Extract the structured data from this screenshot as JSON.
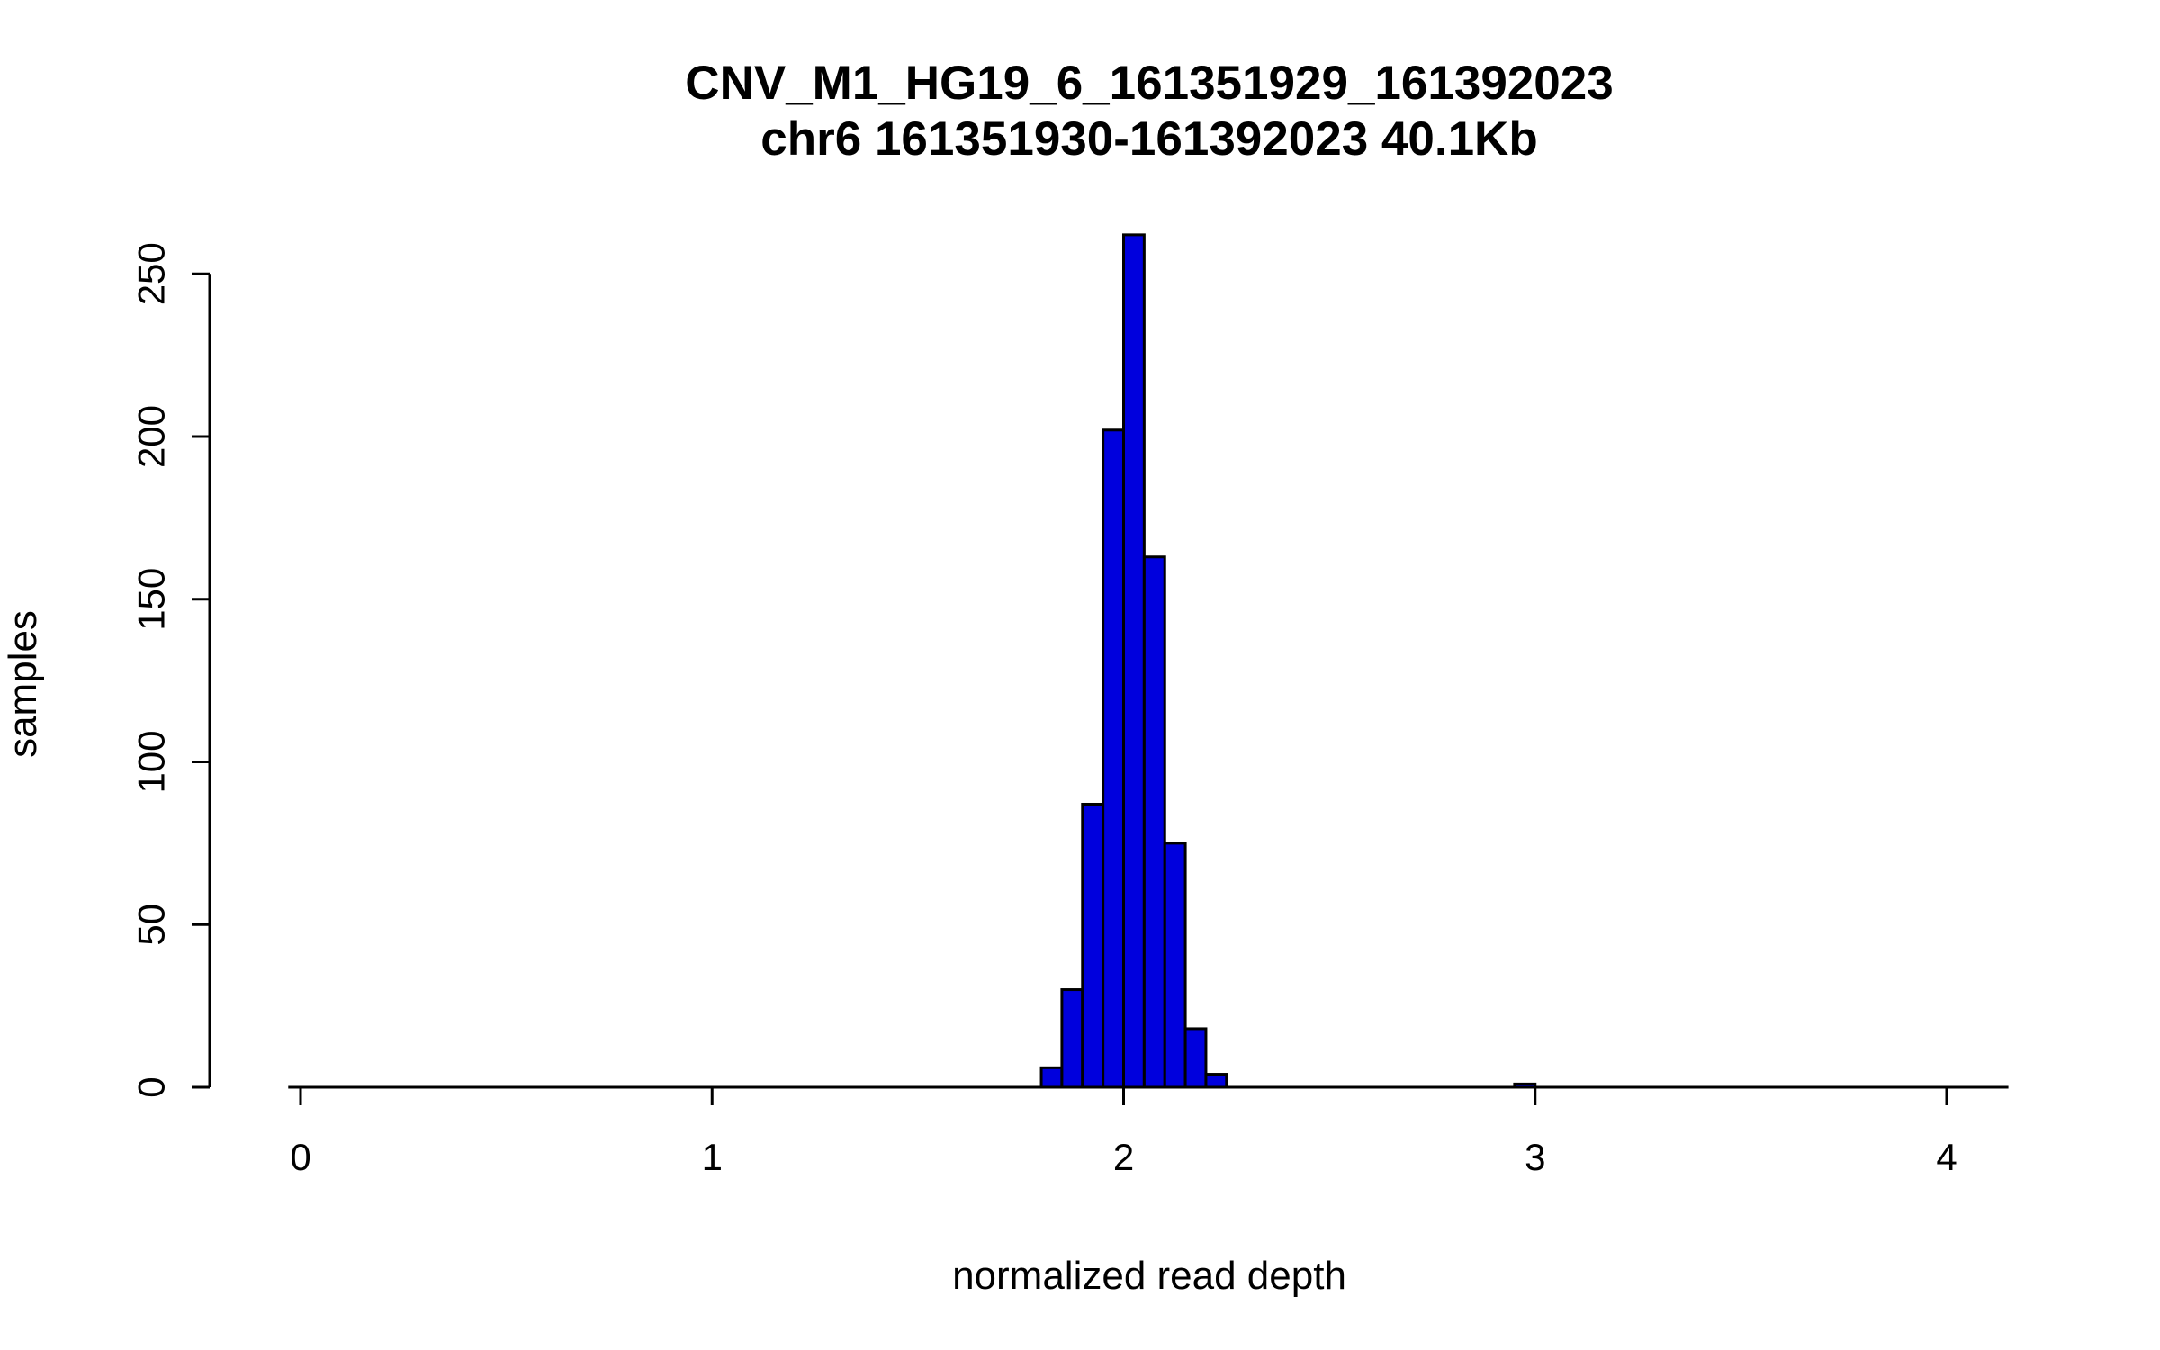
{
  "chart_data": {
    "type": "bar",
    "title_line1": "CNV_M1_HG19_6_161351929_161392023",
    "title_line2": "chr6 161351930-161392023 40.1Kb",
    "xlabel": "normalized read depth",
    "ylabel": "samples",
    "x_ticks": [
      0,
      1,
      2,
      3,
      4
    ],
    "y_ticks": [
      0,
      50,
      100,
      150,
      200,
      250
    ],
    "xlim": [
      -0.03,
      4.15
    ],
    "ylim": [
      0,
      262
    ],
    "bin_width": 0.05,
    "bar_fill_color": "#0000dd",
    "bar_border_color": "#000000",
    "axis_color": "#000000",
    "grid": "off",
    "legend": "none",
    "bars": [
      {
        "x": 1.8,
        "count": 6
      },
      {
        "x": 1.85,
        "count": 30
      },
      {
        "x": 1.9,
        "count": 87
      },
      {
        "x": 1.95,
        "count": 202
      },
      {
        "x": 2.0,
        "count": 262
      },
      {
        "x": 2.05,
        "count": 163
      },
      {
        "x": 2.1,
        "count": 75
      },
      {
        "x": 2.15,
        "count": 18
      },
      {
        "x": 2.2,
        "count": 4
      },
      {
        "x": 2.95,
        "count": 1
      }
    ]
  }
}
